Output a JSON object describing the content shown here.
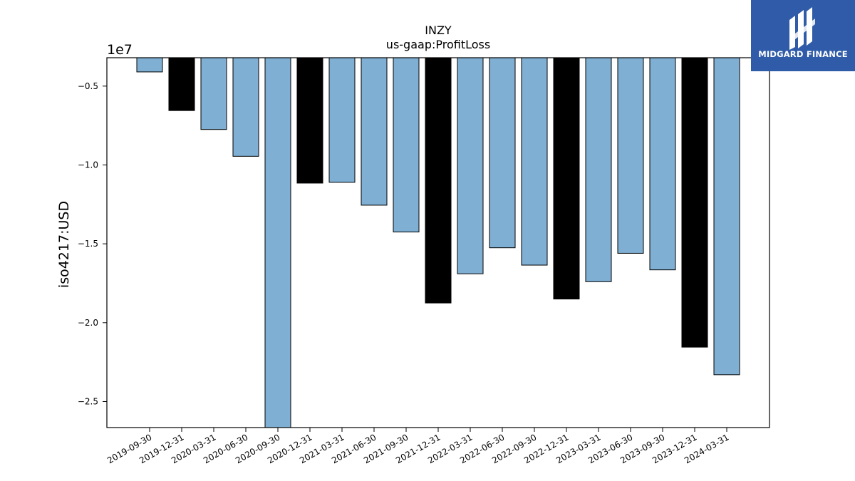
{
  "chart_data": {
    "type": "bar",
    "title": "INZY",
    "subtitle": "us-gaap:ProfitLoss",
    "ylabel": "iso4217:USD",
    "xlabel": "",
    "scale_label": "1e7",
    "ylim": [
      -2.665,
      -0.32
    ],
    "yticks": [
      -0.5,
      -1.0,
      -1.5,
      -2.0,
      -2.5
    ],
    "ytick_labels": [
      "−0.5",
      "−1.0",
      "−1.5",
      "−2.0",
      "−2.5"
    ],
    "categories": [
      "2019-09-30",
      "2019-12-31",
      "2020-03-31",
      "2020-06-30",
      "2020-09-30",
      "2020-12-31",
      "2021-03-31",
      "2021-06-30",
      "2021-09-30",
      "2021-12-31",
      "2022-03-31",
      "2022-06-30",
      "2022-09-30",
      "2022-12-31",
      "2023-03-31",
      "2023-06-30",
      "2023-09-30",
      "2023-12-31",
      "2024-03-31"
    ],
    "values": [
      -0.41,
      -0.655,
      -0.775,
      -0.945,
      -2.665,
      -1.115,
      -1.11,
      -1.255,
      -1.425,
      -1.875,
      -1.69,
      -1.525,
      -1.635,
      -1.85,
      -1.74,
      -1.56,
      -1.665,
      -2.155,
      -2.33
    ],
    "bar_colors": [
      "#7fb0d4",
      "#000000",
      "#7fb0d4",
      "#7fb0d4",
      "#7fb0d4",
      "#000000",
      "#7fb0d4",
      "#7fb0d4",
      "#7fb0d4",
      "#000000",
      "#7fb0d4",
      "#7fb0d4",
      "#7fb0d4",
      "#000000",
      "#7fb0d4",
      "#7fb0d4",
      "#7fb0d4",
      "#000000",
      "#7fb0d4"
    ],
    "grid": false
  },
  "logo": {
    "text": "MIDGARD FINANCE",
    "background": "#2f5ba8"
  }
}
